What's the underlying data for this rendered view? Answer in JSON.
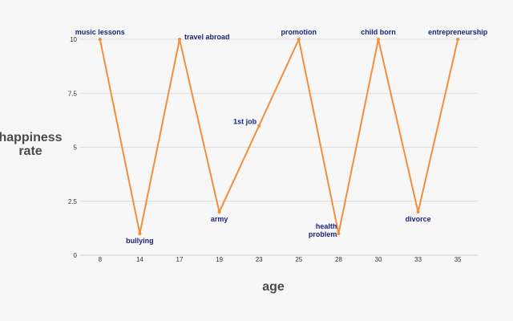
{
  "chart_data": {
    "type": "line",
    "title": "",
    "xlabel": "age",
    "ylabel": "happiness rate",
    "x": [
      8,
      14,
      17,
      19,
      23,
      25,
      28,
      30,
      33,
      35
    ],
    "x_tick_labels": [
      "8",
      "14",
      "17",
      "19",
      "23",
      "25",
      "28",
      "30",
      "33",
      "35"
    ],
    "y_tick_labels": [
      "0",
      "2.5",
      "5",
      "7.5",
      "10"
    ],
    "ylim": [
      0,
      10
    ],
    "grid": true,
    "line_color": "#f28e3c",
    "annotation_color": "#1a237e",
    "series": [
      {
        "values": [
          10,
          1,
          10,
          2,
          6,
          10,
          1,
          10,
          2,
          10
        ]
      }
    ],
    "annotations": [
      {
        "x": 8,
        "y": 10,
        "lines": [
          "music lessons"
        ],
        "pos": "above"
      },
      {
        "x": 14,
        "y": 1,
        "lines": [
          "bullying"
        ],
        "pos": "below"
      },
      {
        "x": 17,
        "y": 10,
        "lines": [
          "travel abroad"
        ],
        "pos": "right"
      },
      {
        "x": 19,
        "y": 2,
        "lines": [
          "army"
        ],
        "pos": "below"
      },
      {
        "x": 23,
        "y": 6,
        "lines": [
          "1st job"
        ],
        "pos": "left"
      },
      {
        "x": 25,
        "y": 10,
        "lines": [
          "promotion"
        ],
        "pos": "above"
      },
      {
        "x": 28,
        "y": 1,
        "lines": [
          "health",
          "problem"
        ],
        "pos": "left-stack"
      },
      {
        "x": 30,
        "y": 10,
        "lines": [
          "child born"
        ],
        "pos": "above"
      },
      {
        "x": 33,
        "y": 2,
        "lines": [
          "divorce"
        ],
        "pos": "below"
      },
      {
        "x": 35,
        "y": 10,
        "lines": [
          "entrepreneurship"
        ],
        "pos": "above"
      }
    ]
  }
}
